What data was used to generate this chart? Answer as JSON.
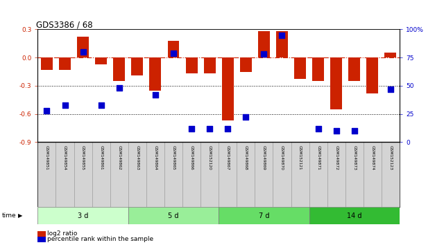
{
  "title": "GDS3386 / 68",
  "samples": [
    "GSM149851",
    "GSM149854",
    "GSM149855",
    "GSM149861",
    "GSM149862",
    "GSM149863",
    "GSM149864",
    "GSM149865",
    "GSM149866",
    "GSM152120",
    "GSM149867",
    "GSM149868",
    "GSM149869",
    "GSM149870",
    "GSM152121",
    "GSM149871",
    "GSM149872",
    "GSM149873",
    "GSM149874",
    "GSM152123"
  ],
  "log2_ratio": [
    -0.13,
    -0.13,
    0.22,
    -0.07,
    -0.25,
    -0.19,
    -0.35,
    0.18,
    -0.17,
    -0.17,
    -0.67,
    -0.15,
    0.28,
    0.28,
    -0.23,
    -0.25,
    -0.55,
    -0.25,
    -0.38,
    0.05
  ],
  "percentile_rank": [
    28,
    33,
    80,
    33,
    48,
    null,
    42,
    79,
    12,
    12,
    12,
    22,
    78,
    95,
    null,
    12,
    10,
    10,
    null,
    47
  ],
  "time_groups": [
    {
      "label": "3 d",
      "start": 0,
      "end": 4
    },
    {
      "label": "5 d",
      "start": 5,
      "end": 9
    },
    {
      "label": "7 d",
      "start": 10,
      "end": 14
    },
    {
      "label": "14 d",
      "start": 15,
      "end": 19
    }
  ],
  "time_colors": [
    "#ccffcc",
    "#99ee99",
    "#66dd66",
    "#33bb33"
  ],
  "ylim": [
    -0.9,
    0.3
  ],
  "yticks_left": [
    -0.9,
    -0.6,
    -0.3,
    0.0,
    0.3
  ],
  "yticks_right": [
    0,
    25,
    50,
    75,
    100
  ],
  "bar_color": "#cc2200",
  "dot_color": "#0000cc",
  "hline_color": "#cc2200",
  "bg_color": "#ffffff",
  "bar_width": 0.65,
  "dot_size": 30,
  "legend_labels": [
    "log2 ratio",
    "percentile rank within the sample"
  ],
  "legend_colors": [
    "#cc2200",
    "#0000cc"
  ]
}
